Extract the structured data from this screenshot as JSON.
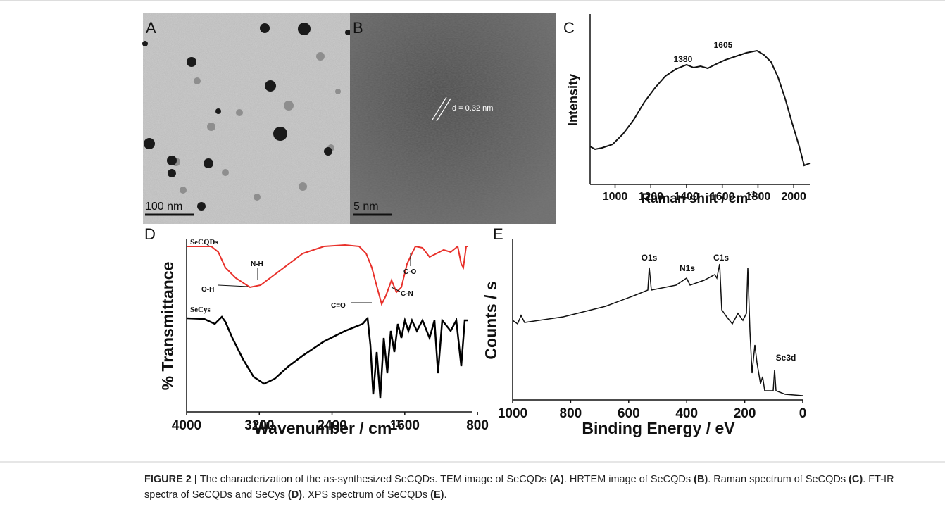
{
  "figure": {
    "panels": [
      {
        "label": "A",
        "scale_bar": "100 nm"
      },
      {
        "label": "B",
        "scale_bar": "5 nm",
        "annotation": "d = 0.32 nm"
      },
      {
        "label": "C",
        "type": "line",
        "x_label": "Raman shift / cm",
        "x_label_sup": "-1",
        "y_label": "Intensity",
        "xlim": [
          860,
          2090
        ],
        "xticks": [
          1000,
          1200,
          1400,
          1600,
          1800,
          2000
        ],
        "peak_labels": [
          1380,
          1605
        ]
      },
      {
        "label": "D",
        "type": "line",
        "x_label": "Wavenumber / cm",
        "x_label_sup": "-1",
        "y_label": "% Transmittance",
        "xlim": [
          4000,
          700
        ],
        "xticks": [
          4000,
          3200,
          2400,
          1600,
          800
        ],
        "series": [
          {
            "name": "SeCQDs",
            "color": "#e8302a"
          },
          {
            "name": "SeCys",
            "color": "#000000"
          }
        ],
        "annotations": [
          "O-H",
          "N-H",
          "C=O",
          "C-N",
          "C-O"
        ]
      },
      {
        "label": "E",
        "type": "line",
        "x_label": "Binding Energy / eV",
        "y_label": "Counts / s",
        "xlim": [
          1000,
          0
        ],
        "xticks": [
          1000,
          800,
          600,
          400,
          200,
          0
        ],
        "peak_labels": [
          "O1s",
          "N1s",
          "C1s",
          "Se3d"
        ]
      }
    ],
    "caption": {
      "label": "FIGURE 2 |",
      "parts": [
        {
          "text": " The characterization of the as-synthesized SeCQDs. TEM image of SeCQDs ",
          "bold": false
        },
        {
          "text": "(A)",
          "bold": true
        },
        {
          "text": ". HRTEM image of SeCQDs ",
          "bold": false
        },
        {
          "text": "(B)",
          "bold": true
        },
        {
          "text": ". Raman spectrum of SeCQDs ",
          "bold": false
        },
        {
          "text": "(C)",
          "bold": true
        },
        {
          "text": ". FT-IR spectra of SeCQDs and SeCys ",
          "bold": false
        },
        {
          "text": "(D)",
          "bold": true
        },
        {
          "text": ". XPS spectrum of SeCQDs ",
          "bold": false
        },
        {
          "text": "(E)",
          "bold": true
        },
        {
          "text": ".",
          "bold": false
        }
      ]
    }
  }
}
